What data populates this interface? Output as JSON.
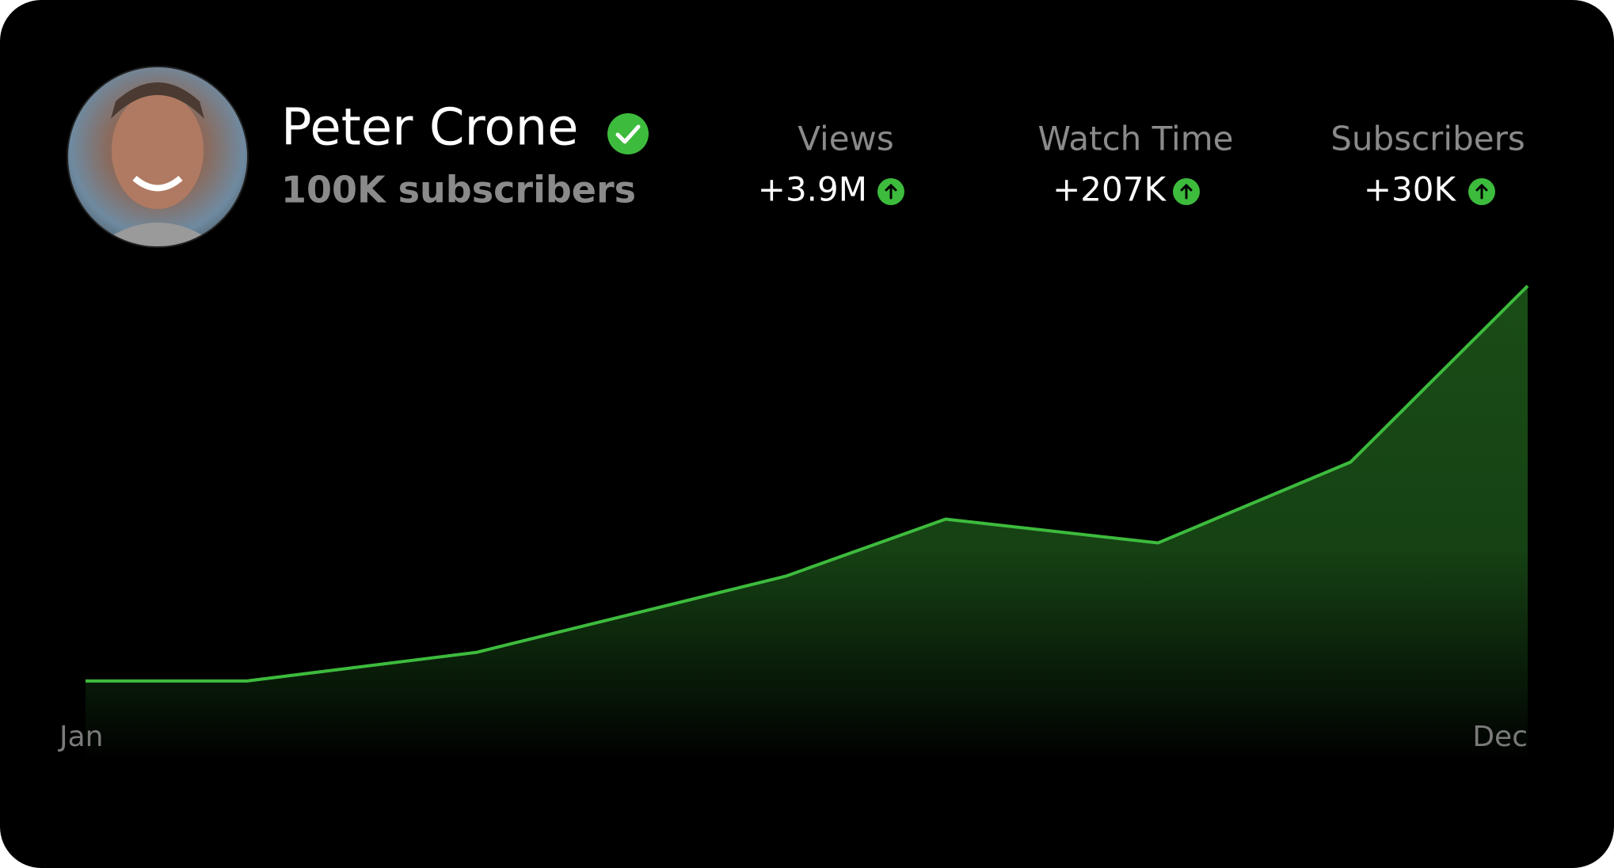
{
  "profile": {
    "name": "Peter Crone",
    "subscribers": "100K subscribers"
  },
  "stats": [
    {
      "label": "Views",
      "value": "+3.9M"
    },
    {
      "label": "Watch Time",
      "value": "+207K"
    },
    {
      "label": "Subscribers",
      "value": "+30K"
    }
  ],
  "chart_data": {
    "type": "area",
    "x": [
      0,
      1.23,
      2.98,
      5.34,
      6.56,
      8.18,
      9.65,
      11
    ],
    "values": [
      17,
      17,
      23,
      39,
      51,
      46,
      63,
      100
    ],
    "xlim": [
      0,
      11
    ],
    "xticks": [
      {
        "value": 0,
        "label": "Jan"
      },
      {
        "value": 11,
        "label": "Dec"
      }
    ],
    "ylim": [
      0,
      100
    ],
    "color": "#3dbb3d"
  }
}
